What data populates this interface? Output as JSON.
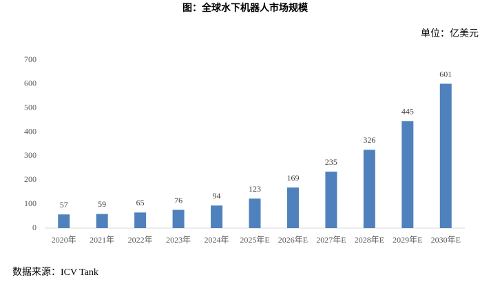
{
  "chart_data": {
    "type": "bar",
    "title": "图：全球水下机器人市场规模",
    "unit": "单位：亿美元",
    "source": "数据来源：ICV Tank",
    "categories": [
      "2020年",
      "2021年",
      "2022年",
      "2023年",
      "2024年",
      "2025年E",
      "2026年E",
      "2027年E",
      "2028年E",
      "2029年E",
      "2030年E"
    ],
    "values": [
      57,
      59,
      65,
      76,
      94,
      123,
      169,
      235,
      326,
      445,
      601
    ],
    "color": "#4f81bd",
    "ylim": [
      0,
      700
    ],
    "yticks": [
      0,
      100,
      200,
      300,
      400,
      500,
      600,
      700
    ],
    "grid": false
  }
}
